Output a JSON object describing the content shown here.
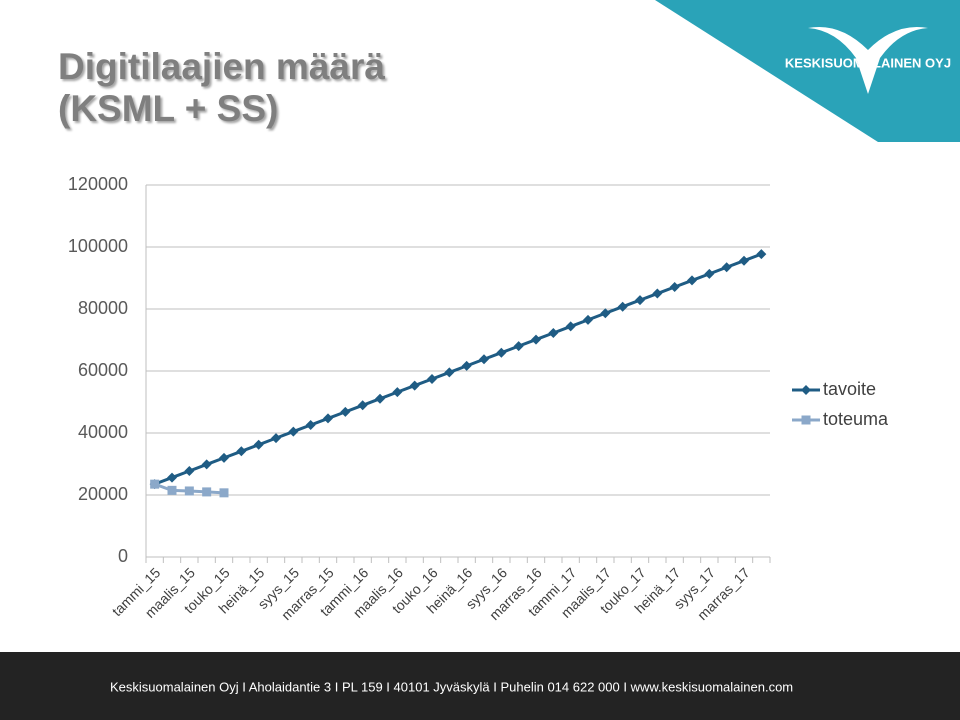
{
  "chart_data": {
    "type": "line",
    "title": "Digitilaajien määrä (KSML + SS)",
    "categories": [
      "tammi_15",
      null,
      "maalis_15",
      null,
      "touko_15",
      null,
      "heinä_15",
      null,
      "syys_15",
      null,
      "marras_15",
      null,
      "tammi_16",
      null,
      "maalis_16",
      null,
      "touko_16",
      null,
      "heinä_16",
      null,
      "syys_16",
      null,
      "marras_16",
      null,
      "tammi_17",
      null,
      "maalis_17",
      null,
      "touko_17",
      null,
      "heinä_17",
      null,
      "syys_17",
      null,
      "marras_17",
      null
    ],
    "series": [
      {
        "name": "tavoite",
        "color": "#1f5c84",
        "marker": "diamond",
        "values": [
          23500,
          25620,
          27740,
          29860,
          31980,
          34100,
          36220,
          38340,
          40460,
          42580,
          44700,
          46820,
          48940,
          51060,
          53180,
          55300,
          57420,
          59540,
          61660,
          63780,
          65900,
          68020,
          70140,
          72260,
          74380,
          76500,
          78620,
          80740,
          82860,
          84980,
          87100,
          89220,
          91340,
          93460,
          95580,
          97700
        ]
      },
      {
        "name": "toteuma",
        "color": "#8ba8c9",
        "marker": "square",
        "values": [
          23500,
          21500,
          21300,
          21000,
          20700,
          null,
          null,
          null,
          null,
          null,
          null,
          null,
          null,
          null,
          null,
          null,
          null,
          null,
          null,
          null,
          null,
          null,
          null,
          null,
          null,
          null,
          null,
          null,
          null,
          null,
          null,
          null,
          null,
          null,
          null,
          null
        ]
      }
    ],
    "ylim": [
      0,
      120000
    ],
    "yticks": [
      0,
      20000,
      40000,
      60000,
      80000,
      100000,
      120000
    ],
    "grid": true,
    "legend": "right"
  },
  "logo": {
    "text": "KESKISUOMALAINEN OYJ"
  },
  "footer": {
    "text": "Keskisuomalainen Oyj I Aholaidantie 3 I PL 159 I 40101 Jyväskylä I Puhelin 014 622 000 I www.keskisuomalainen.com"
  }
}
